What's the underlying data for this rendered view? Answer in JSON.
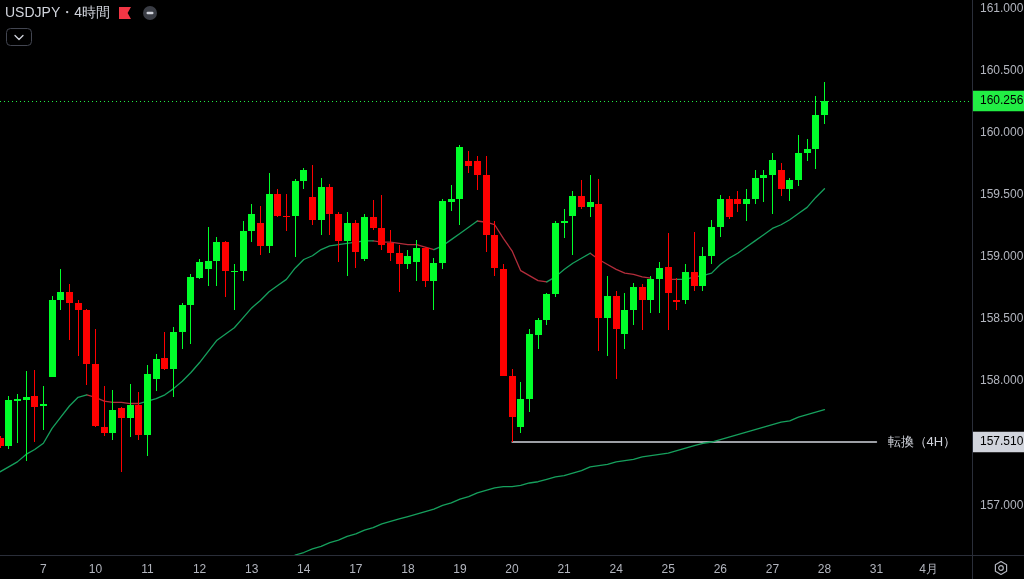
{
  "chart_data": {
    "type": "candlestick",
    "title": "USDJPY・4時間",
    "categories": [
      null,
      null,
      null,
      null,
      null,
      "7",
      null,
      null,
      null,
      null,
      null,
      "10",
      null,
      null,
      null,
      null,
      null,
      "11",
      null,
      null,
      null,
      null,
      null,
      "12",
      null,
      null,
      null,
      null,
      null,
      "13",
      null,
      null,
      null,
      null,
      null,
      "14",
      null,
      null,
      null,
      null,
      null,
      "17",
      null,
      null,
      null,
      null,
      null,
      "18",
      null,
      null,
      null,
      null,
      null,
      "19",
      null,
      null,
      null,
      null,
      null,
      "20",
      null,
      null,
      null,
      null,
      null,
      "21",
      null,
      null,
      null,
      null,
      null,
      "24",
      null,
      null,
      null,
      null,
      null,
      "25",
      null,
      null,
      null,
      null,
      null,
      "26",
      null,
      null,
      null,
      null,
      null,
      "27",
      null,
      null,
      null,
      null,
      null,
      "28",
      null,
      null,
      null,
      null,
      null,
      "31",
      null,
      null,
      null,
      null,
      null,
      "4月",
      null,
      null,
      null,
      null,
      null
    ],
    "ohlc": [
      [
        157.54,
        157.56,
        157.46,
        157.48
      ],
      [
        157.48,
        157.88,
        157.45,
        157.85
      ],
      [
        157.84,
        157.9,
        157.5,
        157.86
      ],
      [
        157.85,
        158.08,
        157.36,
        157.87
      ],
      [
        157.88,
        158.09,
        157.51,
        157.79
      ],
      [
        157.8,
        157.96,
        157.61,
        157.82
      ],
      [
        158.03,
        158.69,
        158.03,
        158.65
      ],
      [
        158.65,
        158.9,
        158.57,
        158.72
      ],
      [
        158.72,
        158.78,
        158.33,
        158.63
      ],
      [
        158.63,
        158.65,
        158.2,
        158.57
      ],
      [
        158.57,
        158.58,
        157.97,
        158.14
      ],
      [
        158.14,
        158.42,
        157.63,
        157.64
      ],
      [
        157.63,
        157.96,
        157.56,
        157.58
      ],
      [
        157.58,
        157.93,
        157.53,
        157.77
      ],
      [
        157.78,
        157.79,
        157.27,
        157.7
      ],
      [
        157.7,
        157.98,
        157.55,
        157.81
      ],
      [
        157.81,
        157.91,
        157.53,
        157.57
      ],
      [
        157.57,
        158.13,
        157.4,
        158.06
      ],
      [
        158.02,
        158.22,
        157.92,
        158.18
      ],
      [
        158.19,
        158.4,
        158.09,
        158.1
      ],
      [
        158.1,
        158.44,
        157.87,
        158.4
      ],
      [
        158.4,
        158.63,
        158.26,
        158.61
      ],
      [
        158.61,
        158.86,
        158.3,
        158.84
      ],
      [
        158.83,
        158.98,
        158.82,
        158.96
      ],
      [
        158.9,
        159.24,
        158.77,
        158.97
      ],
      [
        158.97,
        159.16,
        158.77,
        159.12
      ],
      [
        159.12,
        159.13,
        158.68,
        158.89
      ],
      [
        158.88,
        158.94,
        158.57,
        158.89
      ],
      [
        158.89,
        159.29,
        158.81,
        159.21
      ],
      [
        159.21,
        159.43,
        159.12,
        159.35
      ],
      [
        159.27,
        159.41,
        159.02,
        159.09
      ],
      [
        159.09,
        159.68,
        159.03,
        159.51
      ],
      [
        159.51,
        159.55,
        159.32,
        159.33
      ],
      [
        159.33,
        159.51,
        159.21,
        159.32
      ],
      [
        159.33,
        159.63,
        159.0,
        159.61
      ],
      [
        159.61,
        159.72,
        159.55,
        159.7
      ],
      [
        159.48,
        159.74,
        159.26,
        159.3
      ],
      [
        159.3,
        159.64,
        159.18,
        159.56
      ],
      [
        159.56,
        159.59,
        159.18,
        159.35
      ],
      [
        159.35,
        159.36,
        158.96,
        159.13
      ],
      [
        159.13,
        159.36,
        158.85,
        159.27
      ],
      [
        159.27,
        159.3,
        158.91,
        159.04
      ],
      [
        158.98,
        159.35,
        158.97,
        159.32
      ],
      [
        159.32,
        159.46,
        159.22,
        159.23
      ],
      [
        159.23,
        159.5,
        159.06,
        159.1
      ],
      [
        159.11,
        159.22,
        158.97,
        159.03
      ],
      [
        159.03,
        159.1,
        158.72,
        158.94
      ],
      [
        158.94,
        159.06,
        158.9,
        159.01
      ],
      [
        158.96,
        159.14,
        158.81,
        159.07
      ],
      [
        159.07,
        159.08,
        158.76,
        158.81
      ],
      [
        158.81,
        158.99,
        158.57,
        158.95
      ],
      [
        158.95,
        159.47,
        158.9,
        159.45
      ],
      [
        159.44,
        159.58,
        159.37,
        159.47
      ],
      [
        159.47,
        159.9,
        159.26,
        159.89
      ],
      [
        159.77,
        159.85,
        159.68,
        159.73
      ],
      [
        159.77,
        159.81,
        159.54,
        159.66
      ],
      [
        159.66,
        159.81,
        159.04,
        159.18
      ],
      [
        159.18,
        159.29,
        158.85,
        158.91
      ],
      [
        158.9,
        158.94,
        158.04,
        158.04
      ],
      [
        158.04,
        158.1,
        157.51,
        157.71
      ],
      [
        157.63,
        157.99,
        157.58,
        157.86
      ],
      [
        157.86,
        158.42,
        157.75,
        158.38
      ],
      [
        158.37,
        158.51,
        158.26,
        158.49
      ],
      [
        158.49,
        158.71,
        158.45,
        158.7
      ],
      [
        158.7,
        159.29,
        158.68,
        159.27
      ],
      [
        159.27,
        159.39,
        159.15,
        159.29
      ],
      [
        159.33,
        159.53,
        159.02,
        159.49
      ],
      [
        159.49,
        159.62,
        159.39,
        159.4
      ],
      [
        159.4,
        159.66,
        159.32,
        159.44
      ],
      [
        159.43,
        159.63,
        158.24,
        158.51
      ],
      [
        158.51,
        158.85,
        158.2,
        158.69
      ],
      [
        158.69,
        158.73,
        158.02,
        158.42
      ],
      [
        158.38,
        158.71,
        158.26,
        158.57
      ],
      [
        158.57,
        158.79,
        158.45,
        158.76
      ],
      [
        158.76,
        158.78,
        158.41,
        158.65
      ],
      [
        158.65,
        158.85,
        158.55,
        158.82
      ],
      [
        158.82,
        158.96,
        158.55,
        158.91
      ],
      [
        158.92,
        159.19,
        158.41,
        158.71
      ],
      [
        158.65,
        158.83,
        158.57,
        158.64
      ],
      [
        158.65,
        158.94,
        158.62,
        158.88
      ],
      [
        158.88,
        159.2,
        158.73,
        158.77
      ],
      [
        158.77,
        159.08,
        158.73,
        159.01
      ],
      [
        159.01,
        159.3,
        158.94,
        159.24
      ],
      [
        159.24,
        159.5,
        159.16,
        159.47
      ],
      [
        159.47,
        159.49,
        159.31,
        159.32
      ],
      [
        159.47,
        159.53,
        159.36,
        159.43
      ],
      [
        159.43,
        159.55,
        159.29,
        159.47
      ],
      [
        159.47,
        159.7,
        159.43,
        159.64
      ],
      [
        159.64,
        159.7,
        159.44,
        159.66
      ],
      [
        159.66,
        159.84,
        159.35,
        159.78
      ],
      [
        159.7,
        159.76,
        159.49,
        159.55
      ],
      [
        159.55,
        159.64,
        159.45,
        159.62
      ],
      [
        159.62,
        159.98,
        159.57,
        159.84
      ],
      [
        159.84,
        159.95,
        159.77,
        159.87
      ],
      [
        159.87,
        160.3,
        159.71,
        160.14
      ],
      [
        160.14,
        160.41,
        160.07,
        160.256
      ],
      null,
      null,
      null,
      null,
      null,
      null,
      null,
      null,
      null,
      null,
      null,
      null,
      null,
      null,
      null,
      null,
      null
    ],
    "colors": [
      "#ff0000",
      "#00ff2a",
      "#00ff2a",
      "#00ff2a",
      "#ff0000",
      "#00ff2a",
      "#00ff2a",
      "#00ff2a",
      "#ff0000",
      "#ff0000",
      "#ff0000",
      "#ff0000",
      "#ff0000",
      "#00ff2a",
      "#ff0000",
      "#00ff2a",
      "#ff0000",
      "#00ff2a",
      "#00ff2a",
      "#ff0000",
      "#00ff2a",
      "#00ff2a",
      "#00ff2a",
      "#00ff2a",
      "#00ff2a",
      "#00ff2a",
      "#ff0000",
      "#00ff2a",
      "#00ff2a",
      "#00ff2a",
      "#ff0000",
      "#00ff2a",
      "#ff0000",
      "#ff0000",
      "#00ff2a",
      "#00ff2a",
      "#ff0000",
      "#00ff2a",
      "#ff0000",
      "#ff0000",
      "#00ff2a",
      "#ff0000",
      "#00ff2a",
      "#ff0000",
      "#ff0000",
      "#ff0000",
      "#ff0000",
      "#00ff2a",
      "#00ff2a",
      "#ff0000",
      "#00ff2a",
      "#00ff2a",
      "#00ff2a",
      "#00ff2a",
      "#ff0000",
      "#ff0000",
      "#ff0000",
      "#ff0000",
      "#ff0000",
      "#ff0000",
      "#00ff2a",
      "#00ff2a",
      "#00ff2a",
      "#00ff2a",
      "#00ff2a",
      "#00ff2a",
      "#00ff2a",
      "#ff0000",
      "#00ff2a",
      "#ff0000",
      "#00ff2a",
      "#ff0000",
      "#00ff2a",
      "#00ff2a",
      "#ff0000",
      "#00ff2a",
      "#00ff2a",
      "#ff0000",
      "#ff0000",
      "#00ff2a",
      "#ff0000",
      "#00ff2a",
      "#00ff2a",
      "#00ff2a",
      "#ff0000",
      "#ff0000",
      "#00ff2a",
      "#00ff2a",
      "#00ff2a",
      "#00ff2a",
      "#ff0000",
      "#00ff2a",
      "#00ff2a",
      "#00ff2a",
      "#00ff2a",
      "#00ff2a",
      null,
      null,
      null,
      null,
      null,
      null,
      null,
      null,
      null,
      null,
      null,
      null,
      null,
      null,
      null,
      null,
      null
    ],
    "series": [
      {
        "type": "line",
        "color": "#16a05d",
        "values": [
          157.27,
          157.31,
          157.35,
          157.41,
          157.45,
          157.5,
          157.62,
          157.71,
          157.8,
          157.87,
          157.89,
          null,
          null,
          null,
          null,
          null,
          157.82,
          157.84,
          157.86,
          157.89,
          157.94,
          158.0,
          158.07,
          158.15,
          158.24,
          158.33,
          158.38,
          158.43,
          158.51,
          158.59,
          158.65,
          158.72,
          158.77,
          158.82,
          158.91,
          158.98,
          159.01,
          159.06,
          159.09,
          159.1,
          159.11,
          159.12,
          159.13,
          159.13,
          null,
          null,
          null,
          null,
          null,
          null,
          159.06,
          159.09,
          159.14,
          159.19,
          159.24,
          159.29,
          null,
          null,
          null,
          null,
          null,
          null,
          null,
          158.8,
          158.84,
          158.9,
          158.95,
          158.99,
          159.03,
          null,
          null,
          null,
          null,
          null,
          null,
          null,
          null,
          null,
          158.82,
          158.82,
          158.84,
          158.85,
          158.87,
          158.94,
          158.99,
          159.03,
          159.08,
          159.13,
          159.18,
          159.23,
          159.26,
          159.3,
          159.35,
          159.4,
          159.48,
          159.55,
          null,
          null,
          null,
          null,
          null,
          null,
          null,
          null,
          null,
          null,
          null,
          null,
          null,
          null,
          null,
          null,
          null
        ]
      },
      {
        "type": "line",
        "color": "#b22d3b",
        "values": [
          null,
          null,
          null,
          null,
          null,
          null,
          null,
          null,
          null,
          null,
          157.89,
          157.87,
          157.84,
          157.83,
          157.83,
          157.82,
          157.82,
          null,
          null,
          null,
          null,
          null,
          null,
          null,
          null,
          null,
          null,
          null,
          null,
          null,
          null,
          null,
          null,
          null,
          null,
          null,
          null,
          null,
          null,
          null,
          null,
          null,
          null,
          159.13,
          159.12,
          159.12,
          159.11,
          159.1,
          159.1,
          159.08,
          159.06,
          null,
          null,
          null,
          null,
          159.29,
          159.28,
          159.26,
          159.15,
          159.05,
          158.89,
          158.85,
          158.81,
          158.8,
          null,
          null,
          null,
          null,
          159.03,
          158.98,
          158.94,
          158.9,
          158.87,
          158.86,
          158.84,
          158.83,
          null,
          158.82,
          158.82,
          null,
          null,
          null,
          null,
          null,
          null,
          null,
          null,
          null,
          null,
          null,
          null,
          null,
          null,
          null,
          null,
          null,
          null,
          null,
          null,
          null,
          null,
          null,
          null,
          null,
          null,
          null,
          null,
          null,
          null,
          null,
          null,
          null,
          null
        ]
      },
      {
        "type": "line",
        "color": "#16a05d",
        "values": [
          null,
          null,
          null,
          null,
          null,
          null,
          null,
          null,
          null,
          null,
          null,
          null,
          null,
          null,
          null,
          null,
          null,
          null,
          null,
          null,
          null,
          null,
          null,
          null,
          null,
          null,
          null,
          null,
          null,
          null,
          null,
          null,
          null,
          null,
          156.6,
          156.62,
          156.65,
          156.67,
          156.7,
          156.72,
          156.75,
          156.77,
          156.8,
          156.82,
          156.85,
          156.87,
          156.89,
          156.91,
          156.93,
          156.95,
          156.97,
          157.0,
          157.02,
          157.05,
          157.07,
          157.1,
          157.12,
          157.14,
          157.15,
          157.15,
          157.16,
          157.18,
          157.19,
          157.21,
          157.23,
          157.24,
          157.26,
          157.28,
          157.31,
          157.32,
          157.33,
          157.35,
          157.36,
          157.37,
          157.39,
          157.4,
          157.41,
          157.42,
          157.44,
          157.46,
          157.48,
          157.5,
          157.51,
          157.53,
          157.55,
          157.57,
          157.59,
          157.61,
          157.63,
          157.65,
          157.67,
          157.68,
          157.71,
          157.73,
          157.75,
          157.77,
          null,
          null,
          null,
          null,
          null,
          null,
          null,
          null,
          null,
          null,
          null,
          null,
          null,
          null,
          null,
          null,
          null
        ]
      },
      {
        "type": "line",
        "name": "転換（4H）",
        "color": "#d1d4dc",
        "values": [
          null,
          null,
          null,
          null,
          null,
          null,
          null,
          null,
          null,
          null,
          null,
          null,
          null,
          null,
          null,
          null,
          null,
          null,
          null,
          null,
          null,
          null,
          null,
          null,
          null,
          null,
          null,
          null,
          null,
          null,
          null,
          null,
          null,
          null,
          null,
          null,
          null,
          null,
          null,
          null,
          null,
          null,
          null,
          null,
          null,
          null,
          null,
          null,
          null,
          null,
          null,
          null,
          null,
          null,
          null,
          null,
          null,
          null,
          null,
          157.51,
          157.51,
          157.51,
          157.51,
          157.51,
          157.51,
          157.51,
          157.51,
          157.51,
          157.51,
          157.51,
          157.51,
          157.51,
          157.51,
          157.51,
          157.51,
          157.51,
          157.51,
          157.51,
          157.51,
          157.51,
          157.51,
          157.51,
          157.51,
          157.51,
          157.51,
          157.51,
          157.51,
          157.51,
          157.51,
          157.51,
          157.51,
          157.51,
          157.51,
          157.51,
          157.51,
          157.51,
          157.51,
          157.51,
          157.51,
          157.51,
          157.51,
          157.51,
          null,
          null,
          null,
          null,
          null,
          null,
          null,
          null,
          null,
          null,
          null
        ]
      }
    ],
    "ylim": [
      156.6,
      161.07
    ],
    "yticks": [
      {
        "value": 157,
        "label": "157.000"
      },
      {
        "value": 157.51,
        "label": "157.510"
      },
      {
        "value": 158,
        "label": "158.000"
      },
      {
        "value": 158.5,
        "label": "158.500"
      },
      {
        "value": 159,
        "label": "159.000"
      },
      {
        "value": 159.5,
        "label": "159.500"
      },
      {
        "value": 160,
        "label": "160.000"
      },
      {
        "value": 160.256,
        "label": "160.256"
      },
      {
        "value": 160.5,
        "label": "160.500"
      },
      {
        "value": 161,
        "label": "161.000"
      }
    ],
    "ref_lines": [
      {
        "axis": "y",
        "value": 160.256,
        "color": "#22ee44",
        "line_style": "dotted"
      }
    ]
  }
}
